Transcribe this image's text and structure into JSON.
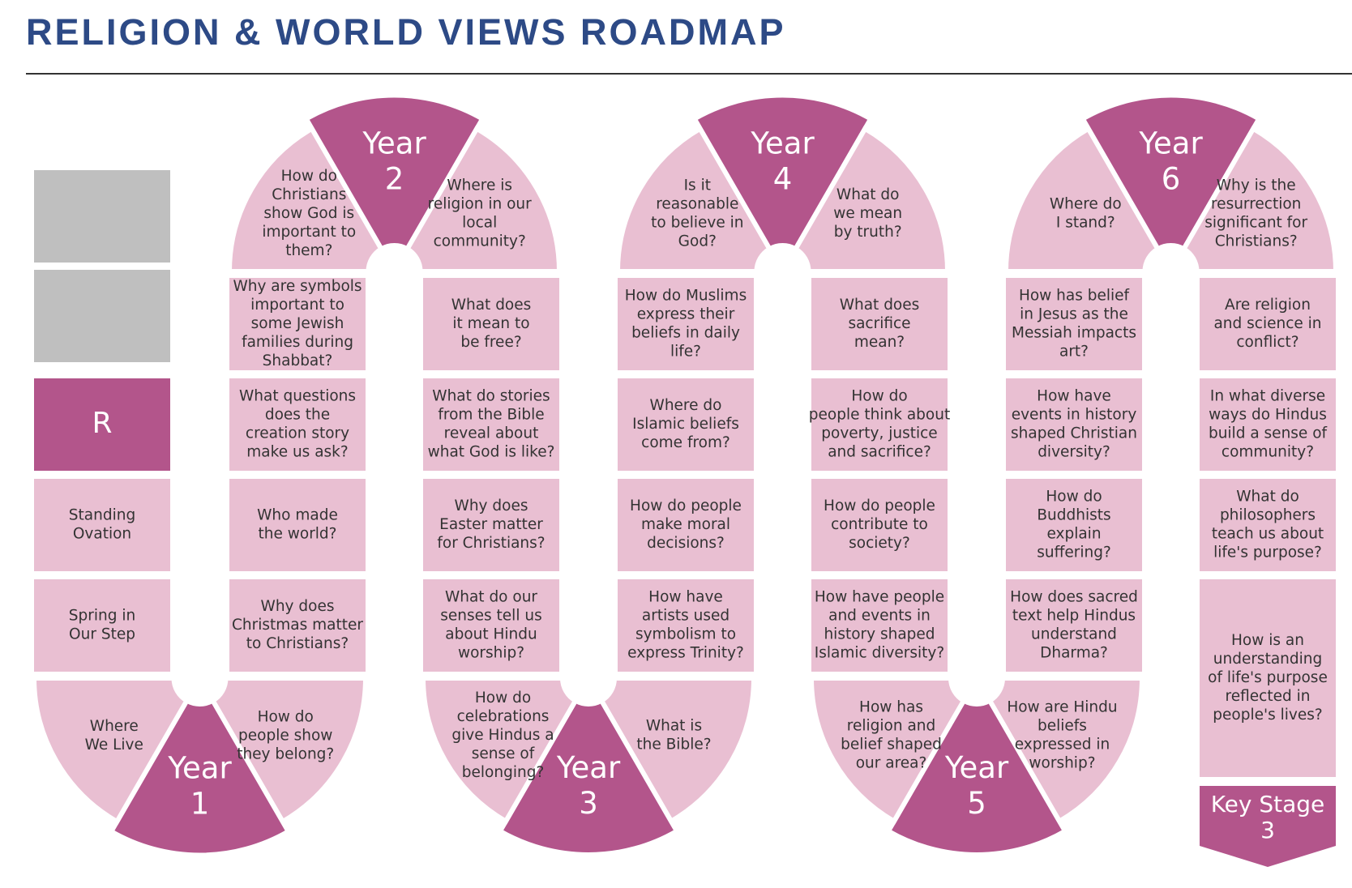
{
  "title": "RELIGION & WORLD VIEWS ROADMAP",
  "colors": {
    "cell": "#e9bfd2",
    "accent": "#b3558b",
    "grey": "#bfbfbf",
    "title": "#2d4a86",
    "text": "#333333"
  },
  "start_column": {
    "grey_cells": 2,
    "reception_label": "R",
    "cells": [
      "Standing\nOvation",
      "Spring in\nOur Step",
      "Where\nWe Live"
    ]
  },
  "years": [
    {
      "label": "Year\n1",
      "topics": [
        "How do\npeople show\nthey belong?",
        "Why does\nChristmas matter\nto Christians?",
        "Who made\nthe world?",
        "What questions\ndoes the\ncreation story\nmake us ask?",
        "Why are symbols\nimportant to\nsome Jewish\nfamilies during\nShabbat?",
        "How do\nChristians\nshow God is\nimportant to\nthem?"
      ]
    },
    {
      "label": "Year\n2",
      "topics": [
        "Where is\nreligion in our\nlocal\ncommunity?",
        "What does\nit mean to\nbe free?",
        "What do stories\nfrom the Bible\nreveal about\nwhat God is like?",
        "Why does\nEaster matter\nfor Christians?",
        "What do our\nsenses tell us\nabout Hindu\nworship?",
        "How do\ncelebrations\ngive Hindus a\nsense of\nbelonging?"
      ]
    },
    {
      "label": "Year\n3",
      "topics": [
        "What is\nthe Bible?",
        "How have\nartists used\nsymbolism to\nexpress Trinity?",
        "How do people\nmake moral\ndecisions?",
        "Where do\nIslamic beliefs\ncome from?",
        "How do Muslims\nexpress their\nbeliefs in daily\nlife?",
        "Is it\nreasonable\nto believe in\nGod?"
      ]
    },
    {
      "label": "Year\n4",
      "topics": [
        "What do\nwe mean\nby truth?",
        "What does\nsacrifice\nmean?",
        "How do\npeople think about\npoverty, justice\nand sacrifice?",
        "How do people\ncontribute to\nsociety?",
        "How have people\nand events in\nhistory shaped\nIslamic diversity?",
        "How has\nreligion and\nbelief shaped\nour area?"
      ]
    },
    {
      "label": "Year\n5",
      "topics": [
        "How are Hindu\nbeliefs\nexpressed in\nworship?",
        "How does sacred\ntext help Hindus\nunderstand\nDharma?",
        "How do\nBuddhists\nexplain\nsuffering?",
        "How have\nevents in history\nshaped Christian\ndiversity?",
        "How has belief\nin Jesus as the\nMessiah impacts\nart?",
        "Where do\nI stand?"
      ]
    },
    {
      "label": "Year\n6",
      "topics": [
        "Why is the\nresurrection\nsignificant for\nChristians?",
        "Are religion\nand science in\nconflict?",
        "In what diverse\nways do Hindus\nbuild a sense of\ncommunity?",
        "What do\nphilosophers\nteach us about\nlife's purpose?",
        "How is an\nunderstanding\nof life's purpose\nreflected in\npeople's lives?"
      ]
    }
  ],
  "end_label": "Key Stage\n3"
}
